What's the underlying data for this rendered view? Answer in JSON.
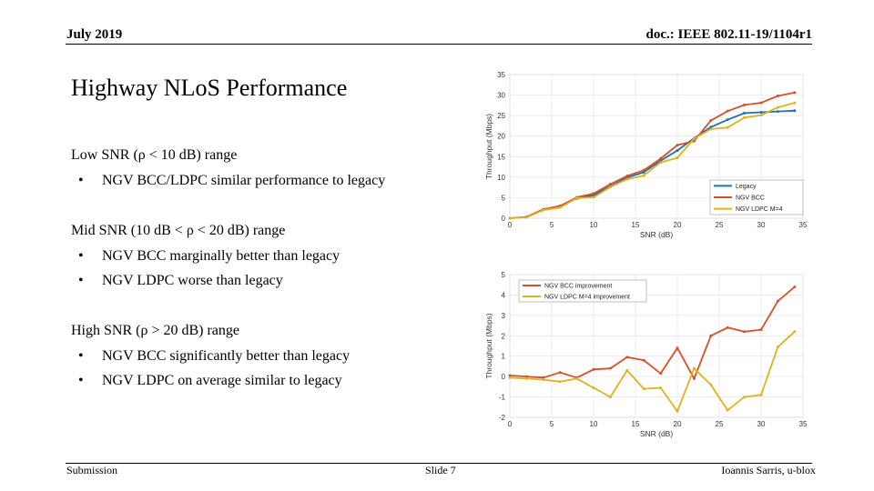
{
  "header": {
    "date": "July 2019",
    "doc_id": "doc.: IEEE 802.11-19/1104r1"
  },
  "slide": {
    "title": "Highway NLoS Performance",
    "sections": [
      {
        "heading": "Low SNR (ρ < 10 dB) range",
        "bullets": [
          "NGV BCC/LDPC similar performance to legacy"
        ]
      },
      {
        "heading": "Mid SNR (10 dB < ρ < 20 dB) range",
        "bullets": [
          "NGV BCC marginally better than legacy",
          "NGV LDPC worse than legacy"
        ]
      },
      {
        "heading": "High SNR (ρ > 20 dB) range",
        "bullets": [
          "NGV BCC significantly better than legacy",
          "NGV LDPC on average similar to legacy"
        ]
      }
    ],
    "bullet_glyph": "•"
  },
  "footer": {
    "left": "Submission",
    "center": "Slide 7",
    "right": "Ioannis Sarris, u-blox"
  },
  "chart_data": [
    {
      "type": "line",
      "xlabel": "SNR (dB)",
      "ylabel": "Throughput (Mbps)",
      "xlim": [
        0,
        35
      ],
      "ylim": [
        0,
        35
      ],
      "xticks": [
        0,
        5,
        10,
        15,
        20,
        25,
        30,
        35
      ],
      "yticks": [
        0,
        5,
        10,
        15,
        20,
        25,
        30,
        35
      ],
      "grid": true,
      "legend_position": "bottom-right",
      "x": [
        0,
        2,
        4,
        6,
        8,
        10,
        12,
        14,
        16,
        18,
        20,
        22,
        24,
        26,
        28,
        30,
        32,
        34
      ],
      "series": [
        {
          "name": "Legacy",
          "color": "#1f6fb5",
          "values": [
            0,
            0.3,
            2.0,
            3.0,
            4.8,
            5.6,
            7.8,
            9.9,
            11.2,
            14.0,
            16.5,
            19.5,
            22.2,
            24.0,
            25.6,
            25.8,
            26.0,
            26.2
          ]
        },
        {
          "name": "NGV BCC",
          "color": "#d4502a",
          "values": [
            0,
            0.3,
            2.2,
            3.0,
            5.1,
            6.0,
            8.3,
            10.3,
            11.7,
            14.5,
            17.8,
            18.8,
            23.8,
            26.1,
            27.6,
            28.1,
            29.8,
            30.6
          ]
        },
        {
          "name": "NGV LDPC M=4",
          "color": "#e0b21e",
          "values": [
            0,
            0.2,
            2.0,
            2.6,
            4.9,
            5.1,
            7.6,
            9.5,
            10.4,
            13.6,
            14.7,
            19.4,
            21.7,
            22.1,
            24.5,
            25.1,
            27.0,
            28.1
          ]
        }
      ]
    },
    {
      "type": "line",
      "xlabel": "SNR (dB)",
      "ylabel": "Throughput (Mbps)",
      "xlim": [
        0,
        35
      ],
      "ylim": [
        -2,
        5
      ],
      "xticks": [
        0,
        5,
        10,
        15,
        20,
        25,
        30,
        35
      ],
      "yticks": [
        -2,
        -1,
        0,
        1,
        2,
        3,
        4,
        5
      ],
      "grid": true,
      "legend_position": "top-left",
      "x": [
        0,
        2,
        4,
        6,
        8,
        10,
        12,
        14,
        16,
        18,
        20,
        22,
        24,
        26,
        28,
        30,
        32,
        34
      ],
      "series": [
        {
          "name": "NGV BCC improvement",
          "color": "#d4502a",
          "values": [
            0.05,
            0.0,
            -0.05,
            0.2,
            -0.05,
            0.35,
            0.4,
            0.95,
            0.8,
            0.15,
            1.4,
            -0.1,
            2.0,
            2.4,
            2.2,
            2.3,
            3.7,
            4.4
          ]
        },
        {
          "name": "NGV LDPC M=4 improvement",
          "color": "#e0b21e",
          "values": [
            -0.05,
            -0.1,
            -0.15,
            -0.25,
            -0.1,
            -0.55,
            -1.0,
            0.3,
            -0.6,
            -0.55,
            -1.7,
            0.4,
            -0.4,
            -1.65,
            -1.0,
            -0.9,
            1.45,
            2.2
          ]
        }
      ]
    }
  ]
}
